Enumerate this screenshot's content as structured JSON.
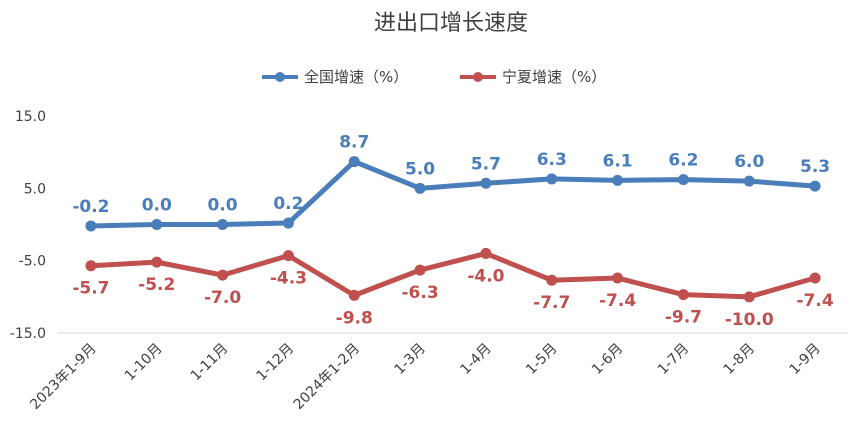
{
  "chart_data": {
    "type": "line",
    "title": "进出口增长速度",
    "xlabel": "",
    "ylabel": "",
    "categories": [
      "2023年1-9月",
      "1-10月",
      "1-11月",
      "1-12月",
      "2024年1-2月",
      "1-3月",
      "1-4月",
      "1-5月",
      "1-6月",
      "1-7月",
      "1-8月",
      "1-9月"
    ],
    "yticks": [
      "15.0",
      "5.0",
      "-5.0",
      "-15.0"
    ],
    "ylim": [
      -15,
      15
    ],
    "grid": false,
    "legend_position": "top",
    "series": [
      {
        "name": "全国增速（%）",
        "color": "#4a7ebb",
        "values": [
          -0.2,
          0.0,
          0.0,
          0.2,
          8.7,
          5.0,
          5.7,
          6.3,
          6.1,
          6.2,
          6.0,
          5.3
        ],
        "labels": [
          "-0.2",
          "0.0",
          "0.0",
          "0.2",
          "8.7",
          "5.0",
          "5.7",
          "6.3",
          "6.1",
          "6.2",
          "6.0",
          "5.3"
        ],
        "label_position": "above"
      },
      {
        "name": "宁夏增速（%）",
        "color": "#c0504d",
        "values": [
          -5.7,
          -5.2,
          -7.0,
          -4.3,
          -9.8,
          -6.3,
          -4.0,
          -7.7,
          -7.4,
          -9.7,
          -10.0,
          -7.4
        ],
        "labels": [
          "-5.7",
          "-5.2",
          "-7.0",
          "-4.3",
          "-9.8",
          "-6.3",
          "-4.0",
          "-7.7",
          "-7.4",
          "-9.7",
          "-10.0",
          "-7.4"
        ],
        "label_position": "below"
      }
    ]
  }
}
